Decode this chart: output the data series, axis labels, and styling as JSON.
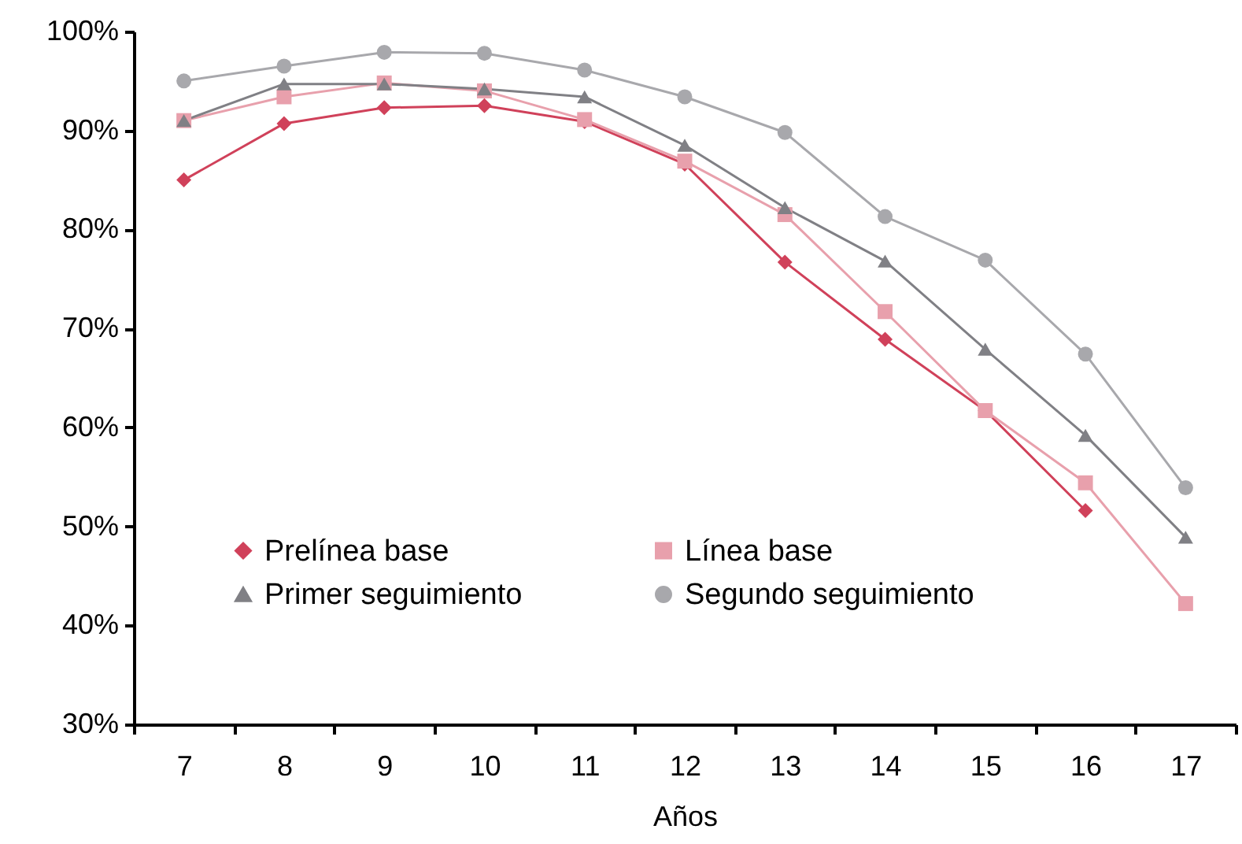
{
  "chart_data": {
    "type": "line",
    "xlabel": "Años",
    "categories": [
      "7",
      "8",
      "9",
      "10",
      "11",
      "12",
      "13",
      "14",
      "15",
      "16",
      "17"
    ],
    "series": [
      {
        "name": "Prelínea base",
        "color": "#d0415a",
        "marker": "diamond",
        "values": [
          85.0,
          90.7,
          92.3,
          92.5,
          90.9,
          86.6,
          76.7,
          68.9,
          61.7,
          51.6,
          null
        ]
      },
      {
        "name": "Línea base",
        "color": "#e8a0ac",
        "marker": "square",
        "values": [
          91.0,
          93.4,
          94.8,
          94.0,
          91.1,
          86.9,
          81.5,
          71.7,
          61.7,
          54.4,
          42.2
        ]
      },
      {
        "name": "Primer seguimiento",
        "color": "#808085",
        "marker": "triangle",
        "values": [
          91.0,
          94.7,
          94.7,
          94.2,
          93.4,
          88.5,
          82.2,
          76.8,
          67.9,
          59.2,
          48.9
        ]
      },
      {
        "name": "Segundo seguimiento",
        "color": "#a8a8ac",
        "marker": "circle",
        "values": [
          95.0,
          96.5,
          97.9,
          97.8,
          96.1,
          93.4,
          89.8,
          81.3,
          76.9,
          67.4,
          53.9
        ]
      }
    ],
    "ylim": [
      30,
      100
    ],
    "yticks": [
      {
        "value": 30,
        "label": "30%"
      },
      {
        "value": 40,
        "label": "40%"
      },
      {
        "value": 50,
        "label": "50%"
      },
      {
        "value": 60,
        "label": "60%"
      },
      {
        "value": 70,
        "label": "70%"
      },
      {
        "value": 80,
        "label": "80%"
      },
      {
        "value": 90,
        "label": "90%"
      },
      {
        "value": 100,
        "label": "100%"
      }
    ],
    "grid": false,
    "legend": "bottom",
    "line_style": "solid"
  }
}
